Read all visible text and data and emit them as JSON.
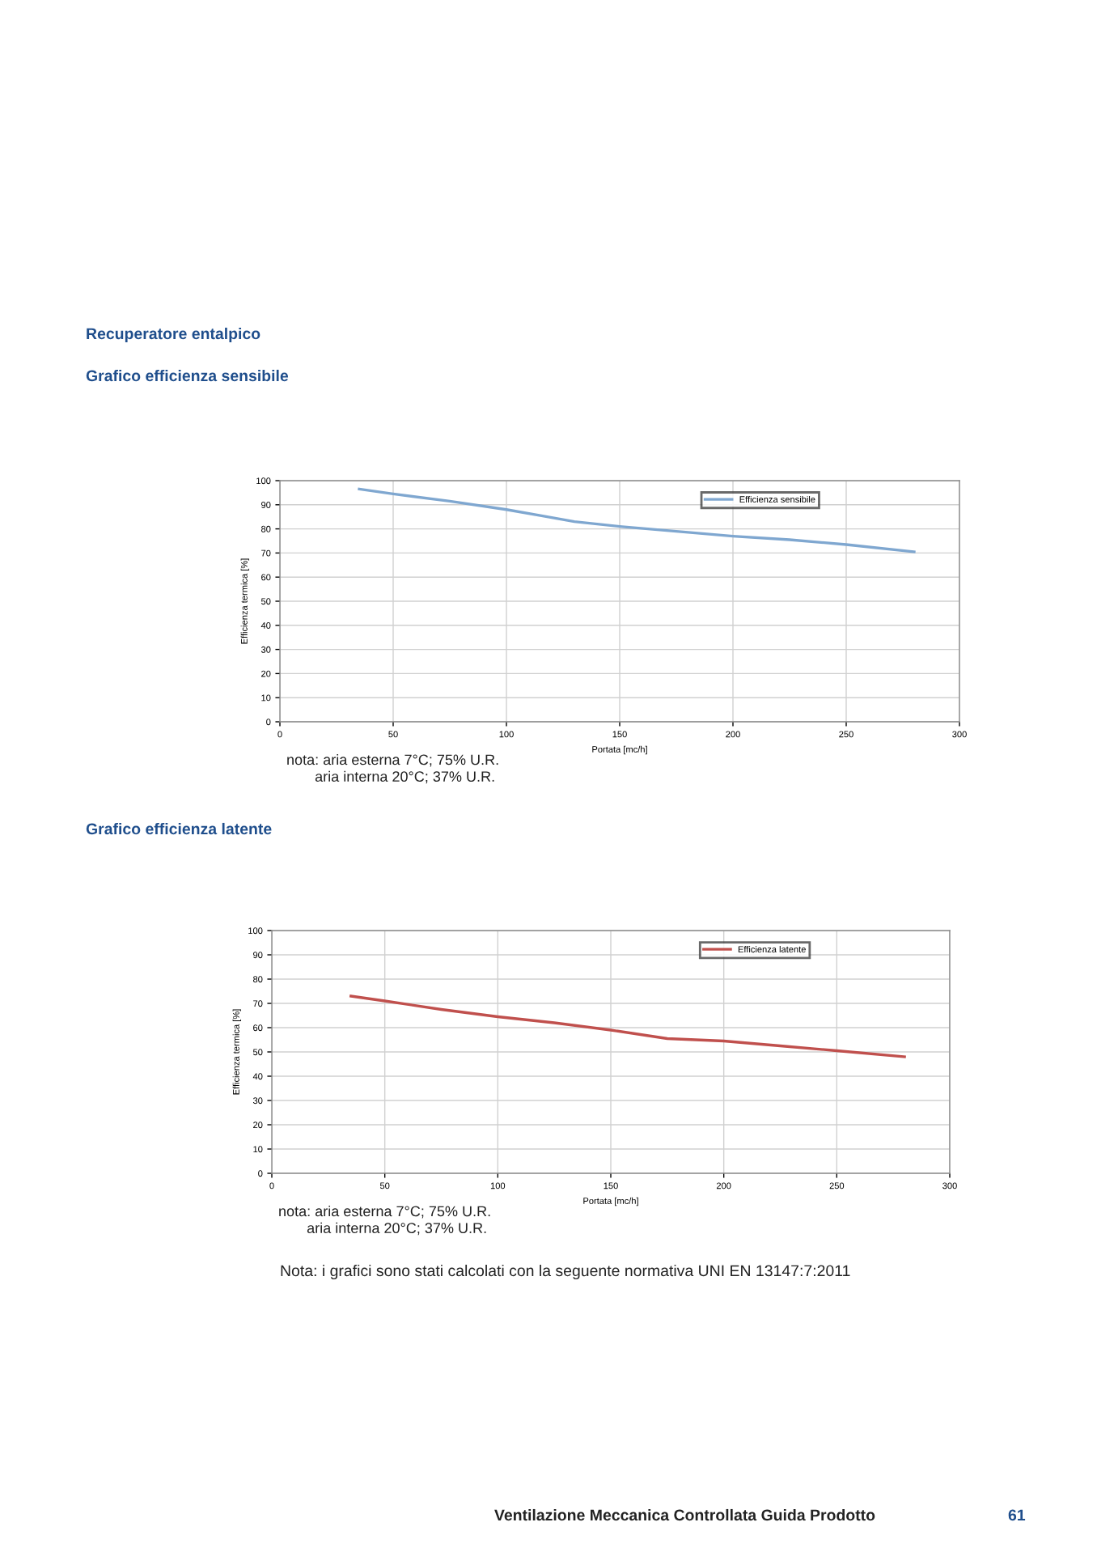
{
  "chart_data": [
    {
      "type": "line",
      "title": "Recuperatore entalpico",
      "subtitle": "Grafico efficienza sensibile",
      "xlabel": "Portata [mc/h]",
      "ylabel": "Efficienza termica [%]",
      "series": [
        {
          "name": "Efficienza sensibile",
          "color": "#7fa7d0",
          "x": [
            35,
            50,
            75,
            100,
            115,
            130,
            150,
            175,
            200,
            225,
            250,
            280
          ],
          "values": [
            96.5,
            94.5,
            91.5,
            88,
            85.5,
            83,
            81,
            79,
            77,
            75.5,
            73.5,
            70.5
          ]
        }
      ],
      "xlim": [
        0,
        300
      ],
      "xticks": [
        0,
        50,
        100,
        150,
        200,
        250,
        300
      ],
      "ylim": [
        0,
        100
      ],
      "yticks": [
        0,
        10,
        20,
        30,
        40,
        50,
        60,
        70,
        80,
        90,
        100
      ],
      "grid": true,
      "legend": "top right",
      "marker": "none",
      "line_style": "solid",
      "annotations": [
        "nota: aria esterna 7°C; 75% U.R.\n       aria interna 20°C; 37% U.R."
      ]
    },
    {
      "type": "line",
      "title": "Grafico efficienza latente",
      "xlabel": "Portata [mc/h]",
      "ylabel": "Efficienza termica [%]",
      "series": [
        {
          "name": "Efficienza latente",
          "color": "#c0504d",
          "x": [
            35,
            50,
            75,
            100,
            125,
            150,
            175,
            200,
            225,
            250,
            280
          ],
          "values": [
            73,
            71,
            67.5,
            64.5,
            62,
            59,
            55.5,
            54.5,
            52.5,
            50.5,
            48
          ]
        }
      ],
      "xlim": [
        0,
        300
      ],
      "xticks": [
        0,
        50,
        100,
        150,
        200,
        250,
        300
      ],
      "ylim": [
        0,
        100
      ],
      "yticks": [
        0,
        10,
        20,
        30,
        40,
        50,
        60,
        70,
        80,
        90,
        100
      ],
      "grid": true,
      "legend": "top right",
      "marker": "none",
      "line_style": "solid",
      "annotations": [
        "nota: aria esterna 7°C; 75% U.R.\n       aria interna 20°C; 37% U.R.",
        "Nota: i grafici sono stati calcolati con la seguente normativa UNI EN 13147:7:2011",
        "Ventilazione Meccanica Controllata Guida Prodotto",
        "61"
      ]
    }
  ]
}
